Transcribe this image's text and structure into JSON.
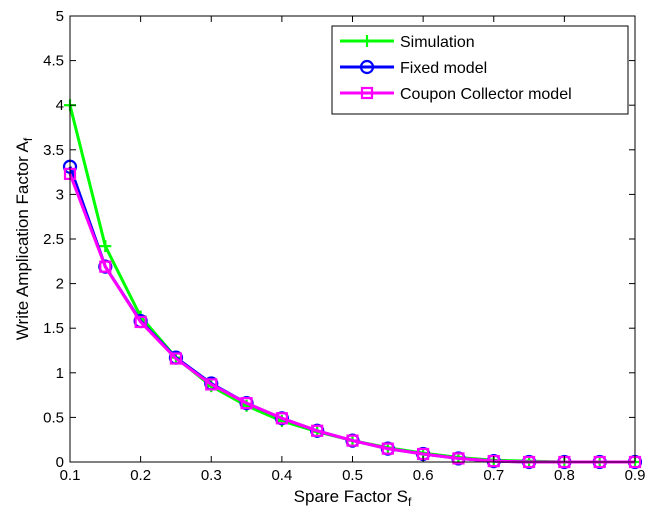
{
  "chart_data": {
    "type": "line",
    "xlabel": "Spare Factor S",
    "xlabel_subscript": "f",
    "ylabel": "Write Amplication Factor A",
    "ylabel_subscript": "f",
    "xlim": [
      0.1,
      0.9
    ],
    "ylim": [
      0,
      5
    ],
    "xticks": [
      "0.1",
      "0.2",
      "0.3",
      "0.4",
      "0.5",
      "0.6",
      "0.7",
      "0.8",
      "0.9"
    ],
    "yticks": [
      "0",
      "0.5",
      "1",
      "1.5",
      "2",
      "2.5",
      "3",
      "3.5",
      "4",
      "4.5",
      "5"
    ],
    "grid": false,
    "legend_position": "top-right",
    "x": [
      0.1,
      0.15,
      0.2,
      0.25,
      0.3,
      0.35,
      0.4,
      0.45,
      0.5,
      0.55,
      0.6,
      0.65,
      0.7,
      0.75,
      0.8,
      0.85,
      0.9
    ],
    "series": [
      {
        "name": "Simulation",
        "color": "#00ff00",
        "marker": "plus",
        "values": [
          4.0,
          2.42,
          1.63,
          1.17,
          0.85,
          0.63,
          0.46,
          0.34,
          0.24,
          0.16,
          0.1,
          0.05,
          0.02,
          0.01,
          0.0,
          0.0,
          0.0
        ]
      },
      {
        "name": "Fixed model",
        "color": "#0000ff",
        "marker": "circle",
        "values": [
          3.31,
          2.19,
          1.58,
          1.17,
          0.88,
          0.66,
          0.49,
          0.35,
          0.24,
          0.15,
          0.09,
          0.04,
          0.01,
          0.0,
          0.0,
          0.0,
          0.0
        ]
      },
      {
        "name": "Coupon Collector model",
        "color": "#ff00ff",
        "marker": "square",
        "values": [
          3.23,
          2.19,
          1.57,
          1.16,
          0.87,
          0.66,
          0.49,
          0.35,
          0.24,
          0.15,
          0.09,
          0.04,
          0.01,
          0.0,
          0.0,
          0.0,
          0.0
        ]
      }
    ]
  }
}
